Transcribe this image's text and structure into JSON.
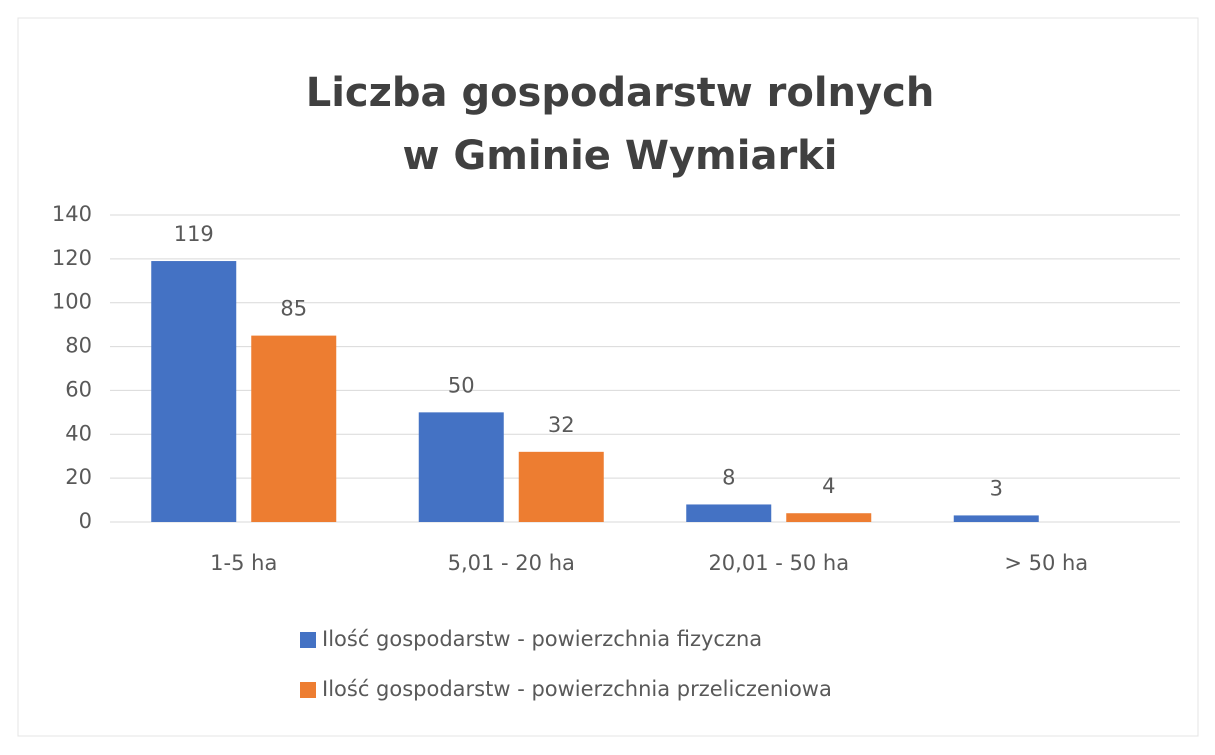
{
  "chart_data": {
    "type": "bar",
    "title": [
      "Liczba gospodarstw rolnych",
      "w Gminie Wymiarki"
    ],
    "categories": [
      "1-5 ha",
      "5,01 - 20 ha",
      "20,01 - 50 ha",
      "> 50 ha"
    ],
    "series": [
      {
        "name": "Ilość gospodarstw - powierzchnia fizyczna",
        "color": "#4472c4",
        "values": [
          119,
          50,
          8,
          3
        ]
      },
      {
        "name": "Ilość gospodarstw - powierzchnia przeliczeniowa",
        "color": "#ed7d31",
        "values": [
          85,
          32,
          4,
          null
        ]
      }
    ],
    "ylim": [
      0,
      140
    ],
    "yticks": [
      0,
      20,
      40,
      60,
      80,
      100,
      120,
      140
    ],
    "grid": true,
    "legend": "bottom"
  }
}
